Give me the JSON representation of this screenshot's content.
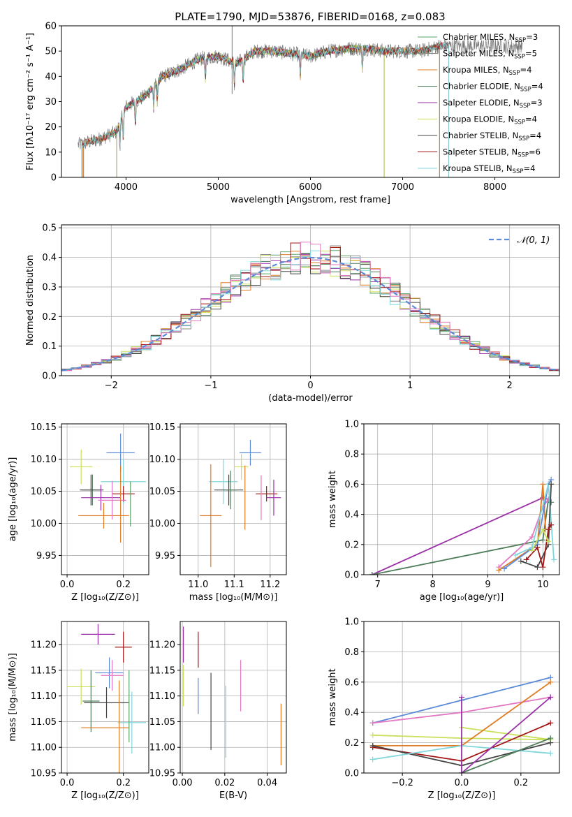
{
  "figure_title": "PLATE=1790, MJD=53876, FIBERID=0168, z=0.083",
  "colors": {
    "Chabrier MILES": "#5aa469",
    "Salpeter MILES": "#8a8a8a",
    "Kroupa MILES": "#e07b24",
    "Chabrier ELODIE": "#4f7d5a",
    "Salpeter ELODIE": "#9b30a8",
    "Kroupa ELODIE": "#c8e05a",
    "Chabrier STELIB": "#454545",
    "Salpeter STELIB": "#a31515",
    "Kroupa STELIB": "#7fd6dc",
    "Pink": "#e377c2",
    "Blue": "#5b8bd8",
    "Normal": "#5b8bd8"
  },
  "chart_data": [
    {
      "id": "spectrum",
      "type": "line",
      "title": "PLATE=1790, MJD=53876, FIBERID=0168, z=0.083",
      "xlabel": "wavelength [Angstrom, rest frame]",
      "ylabel": "Flux [fλ10⁻¹⁷ erg cm⁻² s⁻¹ A⁻¹]",
      "xlim": [
        3300,
        8700
      ],
      "ylim": [
        0,
        60
      ],
      "xticks": [
        4000,
        5000,
        6000,
        7000,
        8000
      ],
      "yticks": [
        0,
        10,
        20,
        30,
        40,
        50,
        60
      ],
      "legend_position": "right",
      "legend": [
        {
          "name": "Chabrier MILES",
          "nssp": "3"
        },
        {
          "name": "Salpeter MILES",
          "nssp": "5"
        },
        {
          "name": "Kroupa MILES",
          "nssp": "4"
        },
        {
          "name": "Chabrier ELODIE",
          "nssp": "4"
        },
        {
          "name": "Salpeter ELODIE",
          "nssp": "3"
        },
        {
          "name": "Kroupa ELODIE",
          "nssp": "4"
        },
        {
          "name": "Chabrier STELIB",
          "nssp": "4"
        },
        {
          "name": "Salpeter STELIB",
          "nssp": "6"
        },
        {
          "name": "Kroupa STELIB",
          "nssp": "4"
        }
      ],
      "continuum_x": [
        3500,
        3700,
        3900,
        4000,
        4200,
        4400,
        4600,
        4800,
        5000,
        5200,
        5400,
        5600,
        5800,
        6000,
        6200,
        6400,
        6600,
        6800,
        7000,
        7200,
        7400
      ],
      "continuum_y": [
        13,
        15,
        18,
        28,
        32,
        40,
        43,
        47,
        48,
        45,
        50,
        50,
        49,
        48,
        50,
        51,
        51,
        50,
        50,
        50,
        52
      ],
      "data_x_range": [
        3480,
        8300
      ],
      "model_ranges": [
        {
          "series": "Chabrier MILES",
          "x": [
            3540,
            7400
          ]
        },
        {
          "series": "Salpeter MILES",
          "x": [
            3540,
            7400
          ]
        },
        {
          "series": "Kroupa MILES",
          "x": [
            3530,
            7400
          ]
        },
        {
          "series": "Chabrier ELODIE",
          "x": [
            3900,
            6800
          ]
        },
        {
          "series": "Salpeter ELODIE",
          "x": [
            3900,
            6800
          ]
        },
        {
          "series": "Kroupa ELODIE",
          "x": [
            3900,
            6800
          ]
        },
        {
          "series": "Chabrier STELIB",
          "x": [
            3520,
            7500
          ]
        },
        {
          "series": "Salpeter STELIB",
          "x": [
            3520,
            7500
          ]
        },
        {
          "series": "Kroupa STELIB",
          "x": [
            3520,
            7500
          ]
        }
      ]
    },
    {
      "id": "residuals",
      "type": "line",
      "xlabel": "(data-model)/error",
      "ylabel": "Normed distribution",
      "xlim": [
        -2.5,
        2.5
      ],
      "ylim": [
        0,
        0.51
      ],
      "xticks": [
        -2,
        -1,
        0,
        1,
        2
      ],
      "yticks": [
        0.0,
        0.1,
        0.2,
        0.3,
        0.4,
        0.5
      ],
      "grid": true,
      "legend_position": "top-right",
      "normal_label": "𝒩(0, 1)",
      "bin_width": 0.1
    },
    {
      "id": "age-vs-z",
      "type": "scatter",
      "xlabel": "Z [log₁₀(Z/Z⊙)]",
      "ylabel": "age  [log₁₀(age/yr)]",
      "xlim": [
        -0.02,
        0.29
      ],
      "ylim": [
        9.92,
        10.155
      ],
      "xticks": [
        0.0,
        0.2
      ],
      "yticks": [
        9.95,
        10.0,
        10.05,
        10.1,
        10.15
      ],
      "grid": true,
      "points": [
        {
          "series": "Kroupa ELODIE",
          "x": 0.05,
          "y": 10.088,
          "xerr": 0.04,
          "yerr": 0.027
        },
        {
          "series": "Chabrier ELODIE",
          "x": 0.09,
          "y": 10.052,
          "xerr": 0.04,
          "yerr": 0.024
        },
        {
          "series": "Chabrier STELIB",
          "x": 0.085,
          "y": 10.052,
          "xerr": 0.04,
          "yerr": 0.024
        },
        {
          "series": "Salpeter ELODIE",
          "x": 0.12,
          "y": 10.04,
          "xerr": 0.07,
          "yerr": 0.02
        },
        {
          "series": "Kroupa MILES",
          "x": 0.13,
          "y": 10.012,
          "xerr": 0.09,
          "yerr": 0.02
        },
        {
          "series": "Blue",
          "x": 0.19,
          "y": 10.11,
          "xerr": 0.05,
          "yerr": 0.03
        },
        {
          "series": "Kroupa STELIB",
          "x": 0.2,
          "y": 10.065,
          "xerr": 0.08,
          "yerr": 0.035
        },
        {
          "series": "Salpeter STELIB",
          "x": 0.2,
          "y": 10.046,
          "xerr": 0.04,
          "yerr": 0.012
        },
        {
          "series": "Pink",
          "x": 0.16,
          "y": 10.036,
          "xerr": 0.05,
          "yerr": 0.03
        },
        {
          "series": "Kroupa MILES",
          "x": 0.19,
          "y": 10.03,
          "xerr": 0.0,
          "yerr": 0.06
        },
        {
          "series": "Chabrier MILES",
          "x": 0.225,
          "y": 10.03,
          "xerr": 0.0,
          "yerr": 0.035
        }
      ]
    },
    {
      "id": "age-vs-mass",
      "type": "scatter",
      "xlabel": "mass [log₁₀(M/M⊙)]",
      "ylabel": "",
      "xlim": [
        10.95,
        11.245
      ],
      "ylim": [
        9.92,
        10.155
      ],
      "xticks": [
        11.0,
        11.1,
        11.2
      ],
      "yticks": [
        9.95,
        10.0,
        10.05,
        10.1,
        10.15
      ],
      "grid": true,
      "points": [
        {
          "series": "Blue",
          "x": 11.145,
          "y": 10.11,
          "xerr": 0.03,
          "yerr": 0.02
        },
        {
          "series": "Kroupa ELODIE",
          "x": 11.12,
          "y": 10.088,
          "xerr": 0.02,
          "yerr": 0.02
        },
        {
          "series": "Kroupa STELIB",
          "x": 11.07,
          "y": 10.065,
          "xerr": 0.04,
          "yerr": 0.035
        },
        {
          "series": "Chabrier STELIB",
          "x": 11.085,
          "y": 10.052,
          "xerr": 0.04,
          "yerr": 0.024
        },
        {
          "series": "Chabrier ELODIE",
          "x": 11.09,
          "y": 10.052,
          "xerr": 0.02,
          "yerr": 0.03
        },
        {
          "series": "Salpeter STELIB",
          "x": 11.19,
          "y": 10.046,
          "xerr": 0.03,
          "yerr": 0.012
        },
        {
          "series": "Salpeter ELODIE",
          "x": 11.21,
          "y": 10.04,
          "xerr": 0.02,
          "yerr": 0.028
        },
        {
          "series": "Kroupa MILES",
          "x": 11.035,
          "y": 10.012,
          "xerr": 0.03,
          "yerr": 0.08
        },
        {
          "series": "Pink",
          "x": 11.175,
          "y": 10.04,
          "xerr": 0.0,
          "yerr": 0.035
        },
        {
          "series": "Kroupa MILES",
          "x": 11.13,
          "y": 10.04,
          "xerr": 0.0,
          "yerr": 0.05
        }
      ]
    },
    {
      "id": "weight-vs-age",
      "type": "line",
      "xlabel": "age  [log₁₀(age/yr)]",
      "ylabel": "mass weight",
      "xlim": [
        6.75,
        10.3
      ],
      "ylim": [
        0,
        1.0
      ],
      "xticks": [
        7,
        8,
        9,
        10
      ],
      "yticks": [
        0.0,
        0.2,
        0.4,
        0.6,
        0.8,
        1.0
      ],
      "grid": true,
      "series": [
        {
          "name": "Salpeter ELODIE",
          "x": [
            6.9,
            10.0,
            10.1
          ],
          "y": [
            0.0,
            0.51,
            0.5
          ]
        },
        {
          "name": "Chabrier ELODIE",
          "x": [
            6.9,
            10.0,
            10.1,
            10.15
          ],
          "y": [
            0.0,
            0.23,
            0.5,
            0.48
          ]
        },
        {
          "name": "Pink",
          "x": [
            9.2,
            9.8,
            10.0,
            10.1
          ],
          "y": [
            0.05,
            0.25,
            0.45,
            0.5
          ]
        },
        {
          "name": "Kroupa MILES",
          "x": [
            9.2,
            9.9,
            10.0,
            10.05
          ],
          "y": [
            0.03,
            0.2,
            0.6,
            0.3
          ]
        },
        {
          "name": "Blue",
          "x": [
            9.3,
            9.9,
            10.1,
            10.15
          ],
          "y": [
            0.04,
            0.2,
            0.6,
            0.63
          ]
        },
        {
          "name": "Kroupa STELIB",
          "x": [
            9.5,
            9.8,
            10.1,
            10.2
          ],
          "y": [
            0.13,
            0.18,
            0.6,
            0.1
          ]
        },
        {
          "name": "Chabrier STELIB",
          "x": [
            9.6,
            9.9,
            10.1,
            10.15
          ],
          "y": [
            0.09,
            0.05,
            0.2,
            0.6
          ]
        },
        {
          "name": "Salpeter STELIB",
          "x": [
            9.7,
            9.9,
            10.0,
            10.1,
            10.15
          ],
          "y": [
            0.1,
            0.18,
            0.05,
            0.3,
            0.33
          ]
        },
        {
          "name": "Kroupa ELODIE",
          "x": [
            9.8,
            10.0,
            10.1
          ],
          "y": [
            0.16,
            0.3,
            0.22
          ]
        }
      ]
    },
    {
      "id": "mass-vs-z",
      "type": "scatter",
      "xlabel": "Z [log₁₀(Z/Z⊙)]",
      "ylabel": "mass [log₁₀(M/M⊙)]",
      "xlim": [
        -0.02,
        0.29
      ],
      "ylim": [
        10.95,
        11.245
      ],
      "xticks": [
        0.0,
        0.2
      ],
      "yticks": [
        10.95,
        11.0,
        11.05,
        11.1,
        11.15,
        11.2
      ],
      "grid": true,
      "points": [
        {
          "series": "Salpeter ELODIE",
          "x": 0.11,
          "y": 11.22,
          "xerr": 0.06,
          "yerr": 0.02
        },
        {
          "series": "Salpeter STELIB",
          "x": 0.2,
          "y": 11.195,
          "xerr": 0.03,
          "yerr": 0.03
        },
        {
          "series": "Kroupa ELODIE",
          "x": 0.05,
          "y": 11.118,
          "xerr": 0.05,
          "yerr": 0.035
        },
        {
          "series": "Blue",
          "x": 0.15,
          "y": 11.145,
          "xerr": 0.05,
          "yerr": 0.03
        },
        {
          "series": "Pink",
          "x": 0.16,
          "y": 11.14,
          "xerr": 0.04,
          "yerr": 0.03
        },
        {
          "series": "Chabrier ELODIE",
          "x": 0.085,
          "y": 11.09,
          "xerr": 0.03,
          "yerr": 0.06
        },
        {
          "series": "Chabrier STELIB",
          "x": 0.14,
          "y": 11.087,
          "xerr": 0.08,
          "yerr": 0.03
        },
        {
          "series": "Kroupa STELIB",
          "x": 0.23,
          "y": 11.048,
          "xerr": 0.05,
          "yerr": 0.06
        },
        {
          "series": "Kroupa MILES",
          "x": 0.135,
          "y": 11.038,
          "xerr": 0.085,
          "yerr": 0.0
        },
        {
          "series": "Kroupa MILES",
          "x": 0.185,
          "y": 11.04,
          "xerr": 0.0,
          "yerr": 0.09
        },
        {
          "series": "Chabrier MILES",
          "x": 0.22,
          "y": 11.08,
          "xerr": 0.0,
          "yerr": 0.07
        }
      ]
    },
    {
      "id": "mass-vs-ebv",
      "type": "scatter",
      "xlabel": "E(B-V)",
      "ylabel": "",
      "xlim": [
        -0.001,
        0.049
      ],
      "ylim": [
        10.95,
        11.245
      ],
      "xticks": [
        0.0,
        0.02,
        0.04
      ],
      "yticks": [
        10.95,
        11.0,
        11.05,
        11.1,
        11.15,
        11.2
      ],
      "grid": true,
      "points": [
        {
          "series": "Salpeter ELODIE",
          "x": 0.0005,
          "y": 11.2,
          "xerr": 0.0,
          "yerr": 0.035
        },
        {
          "series": "Kroupa ELODIE",
          "x": 0.0005,
          "y": 11.12,
          "xerr": 0.0,
          "yerr": 0.04
        },
        {
          "series": "Salpeter STELIB",
          "x": 0.0075,
          "y": 11.19,
          "xerr": 0.0,
          "yerr": 0.035
        },
        {
          "series": "Blue",
          "x": 0.0075,
          "y": 11.1,
          "xerr": 0.0,
          "yerr": 0.035
        },
        {
          "series": "Chabrier STELIB",
          "x": 0.0135,
          "y": 11.07,
          "xerr": 0.0,
          "yerr": 0.075
        },
        {
          "series": "Pink",
          "x": 0.0275,
          "y": 11.12,
          "xerr": 0.0,
          "yerr": 0.05
        },
        {
          "series": "Kroupa STELIB",
          "x": 0.0205,
          "y": 11.05,
          "xerr": 0.0,
          "yerr": 0.07
        },
        {
          "series": "Kroupa MILES",
          "x": 0.0465,
          "y": 11.025,
          "xerr": 0.0,
          "yerr": 0.06
        }
      ]
    },
    {
      "id": "weight-vs-z",
      "type": "line",
      "xlabel": "Z [log₁₀(Z/Z⊙)]",
      "ylabel": "mass weight",
      "xlim": [
        -0.33,
        0.33
      ],
      "ylim": [
        0,
        1.0
      ],
      "xticks": [
        -0.2,
        0.0,
        0.2
      ],
      "yticks": [
        0.0,
        0.2,
        0.4,
        0.6,
        0.8,
        1.0
      ],
      "grid": true,
      "series": [
        {
          "name": "Blue",
          "x": [
            -0.3,
            0.0,
            0.3
          ],
          "y": [
            0.33,
            0.48,
            0.63
          ]
        },
        {
          "name": "Pink",
          "x": [
            -0.3,
            0.0,
            0.3
          ],
          "y": [
            0.33,
            0.4,
            0.5
          ]
        },
        {
          "name": "Kroupa ELODIE",
          "x": [
            -0.3,
            0.0,
            0.3
          ],
          "y": [
            0.25,
            0.23,
            0.22
          ]
        },
        {
          "name": "Kroupa ELODIE",
          "x": [
            0.0,
            0.3
          ],
          "y": [
            0.3,
            0.22
          ]
        },
        {
          "name": "Kroupa MILES",
          "x": [
            -0.3,
            0.0,
            0.3
          ],
          "y": [
            0.18,
            0.18,
            0.6
          ]
        },
        {
          "name": "Salpeter STELIB",
          "x": [
            -0.3,
            0.0,
            0.3
          ],
          "y": [
            0.17,
            0.08,
            0.33
          ]
        },
        {
          "name": "Chabrier STELIB",
          "x": [
            -0.3,
            0.0,
            0.3
          ],
          "y": [
            0.18,
            0.05,
            0.2
          ]
        },
        {
          "name": "Kroupa STELIB",
          "x": [
            -0.3,
            0.0,
            0.3
          ],
          "y": [
            0.09,
            0.18,
            0.13
          ]
        },
        {
          "name": "Salpeter ELODIE",
          "x": [
            0.0,
            0.3
          ],
          "y": [
            0.0,
            0.5
          ]
        },
        {
          "name": "Chabrier ELODIE",
          "x": [
            0.0,
            0.3
          ],
          "y": [
            0.0,
            0.23
          ]
        },
        {
          "name": "Salpeter ELODIE",
          "x": [
            0.0,
            0.0
          ],
          "y": [
            0.0,
            0.5
          ]
        }
      ]
    }
  ]
}
